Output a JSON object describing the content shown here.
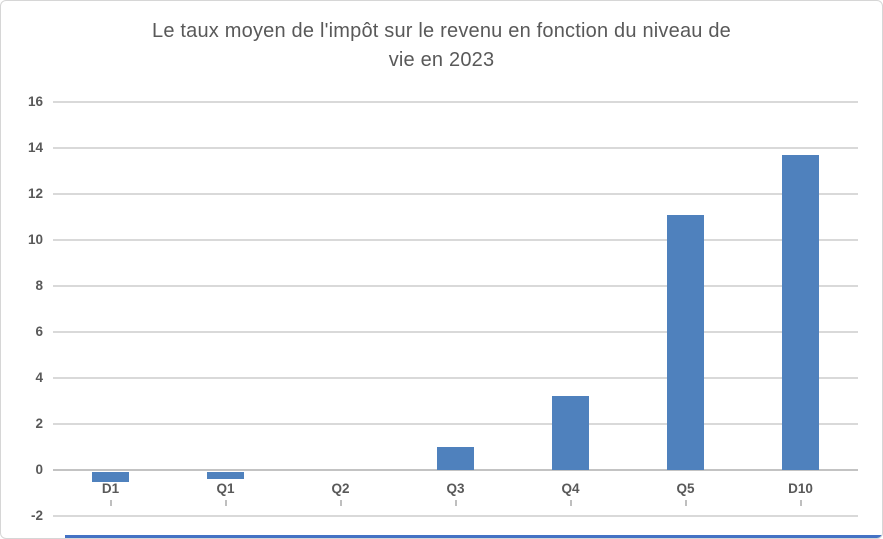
{
  "chart_data": {
    "type": "bar",
    "title": "Le taux moyen de l'impôt sur le revenu en fonction du niveau de vie en 2023",
    "title_lines": [
      "Le taux moyen de l'impôt sur le revenu en fonction du niveau de",
      "vie en 2023"
    ],
    "categories": [
      "D1",
      "Q1",
      "Q2",
      "Q3",
      "Q4",
      "Q5",
      "D10"
    ],
    "values": [
      -0.5,
      -0.4,
      0,
      1.0,
      3.2,
      11.1,
      13.7
    ],
    "yticks": [
      16,
      14,
      12,
      10,
      8,
      6,
      4,
      2,
      0,
      -2
    ],
    "ylim": [
      -2,
      16
    ],
    "xlabel": "",
    "ylabel": "",
    "grid": true,
    "legend": false,
    "colors": {
      "bar": "#4f81bd",
      "gridline": "#d9d9d9",
      "zero_line": "#c3c3c3",
      "tick": "#bfbfbf",
      "text": "#595959",
      "border": "#d6d6d6",
      "bottom_strip": "#4472c4"
    }
  }
}
